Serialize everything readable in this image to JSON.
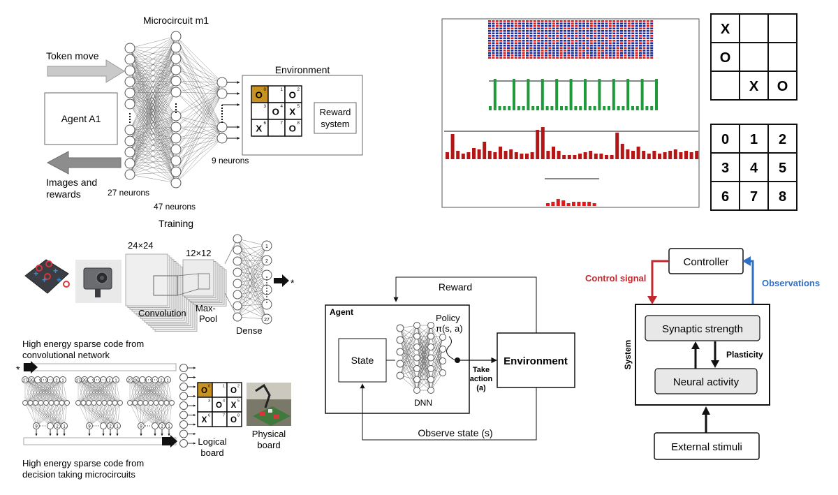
{
  "panelA": {
    "title": "Microcircuit m1",
    "input_label": "Token move",
    "output_label_1": "Images and",
    "output_label_2": "rewards",
    "agent": "Agent A1",
    "layer1": "27 neurons",
    "layer2": "47 neurons",
    "layer3": "9 neurons",
    "environment": "Environment",
    "reward_1": "Reward",
    "reward_2": "system",
    "board_cells": [
      {
        "mark": "O",
        "idx": "0"
      },
      {
        "mark": "",
        "idx": "1"
      },
      {
        "mark": "O",
        "idx": "2"
      },
      {
        "mark": "",
        "idx": "3"
      },
      {
        "mark": "O",
        "idx": "4"
      },
      {
        "mark": "X",
        "idx": "5"
      },
      {
        "mark": "X",
        "idx": "6"
      },
      {
        "mark": "",
        "idx": "7"
      },
      {
        "mark": "O",
        "idx": "8"
      }
    ],
    "highlight_color": "#c8921e"
  },
  "panelB": {
    "raster_colors": [
      "#1f2d9a",
      "#d62020"
    ],
    "bars_green_color": "#1e9a3a",
    "bars_red_color": "#b41616",
    "bars_small_color": "#e01a1a",
    "green_bars": [
      6,
      45,
      6,
      6,
      6,
      45,
      6,
      6,
      45,
      6,
      6,
      45,
      6,
      6,
      45,
      6,
      6,
      45,
      6,
      6,
      45,
      6,
      6,
      45,
      6,
      6,
      45,
      6,
      6,
      45,
      6,
      6,
      45,
      6,
      6,
      45
    ],
    "red_bars": [
      10,
      36,
      12,
      8,
      10,
      16,
      14,
      25,
      12,
      10,
      18,
      12,
      14,
      10,
      8,
      8,
      10,
      42,
      46,
      12,
      18,
      12,
      6,
      6,
      6,
      8,
      10,
      12,
      8,
      8,
      6,
      6,
      38,
      22,
      14,
      12,
      18,
      12,
      8,
      12,
      8,
      10,
      12,
      14,
      10,
      12,
      10,
      12
    ],
    "small_bars": [
      4,
      6,
      10,
      8,
      4,
      6,
      6,
      6,
      6,
      4
    ]
  },
  "panelC": {
    "top_board": [
      "X",
      "",
      "",
      "O",
      "",
      "",
      "",
      "X",
      "O"
    ],
    "index_board": [
      "0",
      "1",
      "2",
      "3",
      "4",
      "5",
      "6",
      "7",
      "8"
    ]
  },
  "panelD": {
    "title": "Training",
    "conv_size": "24×24",
    "pool_size": "12×12",
    "conv_label": "Convolution",
    "pool_label_1": "Max-",
    "pool_label_2": "Pool",
    "dense_label": "Dense",
    "dense_nodes": [
      "1",
      "2",
      "",
      "",
      "",
      "",
      "27"
    ],
    "output_marker": "*"
  },
  "panelE": {
    "top_line_1": "High energy sparse code from",
    "top_line_2": "convolutional network",
    "bottom_line_1": "High energy sparse code from",
    "bottom_line_2": "decision taking microcircuits",
    "input_marker": "*",
    "top_node_labels": [
      "27",
      "26",
      "2",
      "1"
    ],
    "bottom_node_labels": [
      "9",
      "2",
      "1"
    ],
    "logical_1": "Logical",
    "logical_2": "board",
    "physical_1": "Physical",
    "physical_2": "board",
    "board_cells": [
      {
        "mark": "O",
        "idx": "0"
      },
      {
        "mark": "",
        "idx": "1"
      },
      {
        "mark": "O",
        "idx": "2"
      },
      {
        "mark": "",
        "idx": "3"
      },
      {
        "mark": "O",
        "idx": "4"
      },
      {
        "mark": "X",
        "idx": "5"
      },
      {
        "mark": "X",
        "idx": "6"
      },
      {
        "mark": "",
        "idx": "7"
      },
      {
        "mark": "O",
        "idx": "8"
      }
    ]
  },
  "panelF": {
    "reward": "Reward",
    "agent": "Agent",
    "policy_1": "Policy",
    "policy_2": "π(s, a)",
    "state": "State",
    "dnn": "DNN",
    "take_1": "Take",
    "take_2": "action",
    "take_3": "(a)",
    "environment": "Environment",
    "observe": "Observe state (s)"
  },
  "panelG": {
    "controller": "Controller",
    "control_signal": "Control signal",
    "observations": "Observations",
    "system": "System",
    "synaptic": "Synaptic strength",
    "plasticity": "Plasticity",
    "neural": "Neural activity",
    "external": "External stimuli",
    "control_color": "#c0282d",
    "obs_color": "#2f6fc4"
  }
}
